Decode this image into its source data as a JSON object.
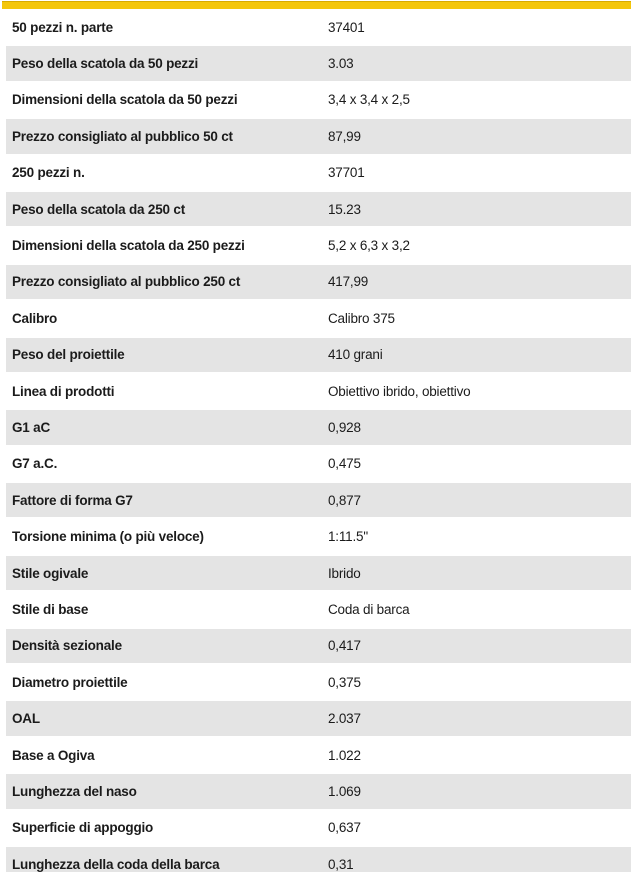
{
  "page": {
    "background_color": "#ffffff",
    "accent_bar_color": "#f4c60b"
  },
  "table": {
    "zebra_colors": {
      "odd_row": "#ffffff",
      "even_row": "#e4e4e4"
    },
    "text_color": "#1b1b1b",
    "rows": [
      {
        "label": "50 pezzi n. parte",
        "value": "37401"
      },
      {
        "label": "Peso della scatola da 50 pezzi",
        "value": "3.03"
      },
      {
        "label": "Dimensioni della scatola da 50 pezzi",
        "value": "3,4 x 3,4 x 2,5"
      },
      {
        "label": "Prezzo consigliato al pubblico 50 ct",
        "value": "87,99"
      },
      {
        "label": "250 pezzi n.",
        "value": "37701"
      },
      {
        "label": "Peso della scatola da 250 ct",
        "value": "15.23"
      },
      {
        "label": "Dimensioni della scatola da 250 pezzi",
        "value": "5,2 x 6,3 x 3,2"
      },
      {
        "label": "Prezzo consigliato al pubblico 250 ct",
        "value": "417,99"
      },
      {
        "label": "Calibro",
        "value": "Calibro 375"
      },
      {
        "label": "Peso del proiettile",
        "value": "410 grani"
      },
      {
        "label": "Linea di prodotti",
        "value": "Obiettivo ibrido, obiettivo"
      },
      {
        "label": "G1 aC",
        "value": "0,928"
      },
      {
        "label": "G7 a.C.",
        "value": "0,475"
      },
      {
        "label": "Fattore di forma G7",
        "value": "0,877"
      },
      {
        "label": "Torsione minima (o più veloce)",
        "value": "1:11.5\""
      },
      {
        "label": "Stile ogivale",
        "value": "Ibrido"
      },
      {
        "label": "Stile di base",
        "value": "Coda di barca"
      },
      {
        "label": "Densità sezionale",
        "value": "0,417"
      },
      {
        "label": "Diametro proiettile",
        "value": "0,375"
      },
      {
        "label": "OAL",
        "value": "2.037"
      },
      {
        "label": "Base a Ogiva",
        "value": "1.022"
      },
      {
        "label": "Lunghezza del naso",
        "value": "1.069"
      },
      {
        "label": "Superficie di appoggio",
        "value": "0,637"
      },
      {
        "label": "Lunghezza della coda della barca",
        "value": "0,31"
      }
    ]
  }
}
